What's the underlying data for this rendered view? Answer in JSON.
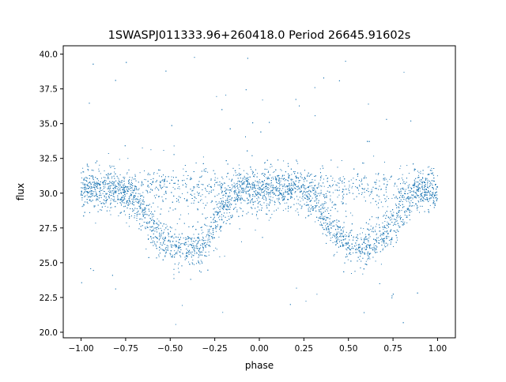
{
  "chart_data": {
    "type": "scatter",
    "title": "1SWASPJ011333.96+260418.0 Period 26645.91602s",
    "xlabel": "phase",
    "ylabel": "flux",
    "xlim": [
      -1.1,
      1.1
    ],
    "ylim": [
      19.6,
      40.6
    ],
    "xticks": [
      -1.0,
      -0.75,
      -0.5,
      -0.25,
      0.0,
      0.25,
      0.5,
      0.75,
      1.0
    ],
    "xtick_labels": [
      "−1.00",
      "−0.75",
      "−0.50",
      "−0.25",
      "0.00",
      "0.25",
      "0.50",
      "0.75",
      "1.00"
    ],
    "yticks": [
      20.0,
      22.5,
      25.0,
      27.5,
      30.0,
      32.5,
      35.0,
      37.5,
      40.0
    ],
    "ytick_labels": [
      "20.0",
      "22.5",
      "25.0",
      "27.5",
      "30.0",
      "32.5",
      "35.0",
      "37.5",
      "40.0"
    ],
    "grid": false,
    "marker_color": "#1f77b4",
    "binned_profile": {
      "phase": [
        -1.0,
        -0.9,
        -0.8,
        -0.7,
        -0.6,
        -0.5,
        -0.4,
        -0.3,
        -0.2,
        -0.1,
        0.0,
        0.1,
        0.2,
        0.3,
        0.4,
        0.5,
        0.6,
        0.7,
        0.8,
        0.9,
        1.0
      ],
      "flux": [
        30.3,
        30.3,
        30.3,
        29.6,
        27.5,
        26.2,
        26.0,
        26.5,
        29.0,
        30.3,
        30.3,
        30.3,
        30.3,
        29.8,
        27.5,
        26.2,
        26.0,
        26.8,
        29.0,
        30.3,
        30.3
      ]
    }
  }
}
